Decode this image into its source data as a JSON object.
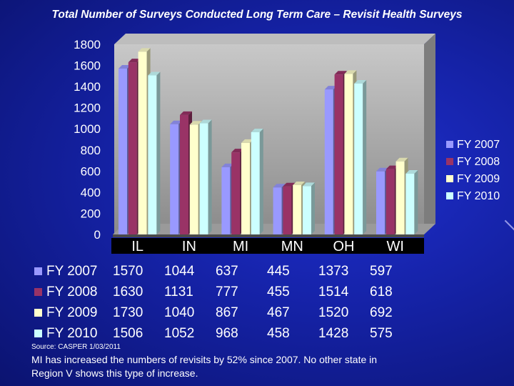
{
  "title": "Total Number of Surveys Conducted Long Term Care – Revisit Health Surveys",
  "chart_data": {
    "type": "bar",
    "title": "Total Number of Surveys Conducted Long Term Care – Revisit Health Surveys",
    "categories": [
      "IL",
      "IN",
      "MI",
      "MN",
      "OH",
      "WI"
    ],
    "series": [
      {
        "name": "FY 2007",
        "values": [
          1570,
          1044,
          637,
          445,
          1373,
          597
        ],
        "color": "#9999ff"
      },
      {
        "name": "FY 2008",
        "values": [
          1630,
          1131,
          777,
          455,
          1514,
          618
        ],
        "color": "#993366"
      },
      {
        "name": "FY 2009",
        "values": [
          1730,
          1040,
          867,
          467,
          1520,
          692
        ],
        "color": "#ffffcc"
      },
      {
        "name": "FY 2010",
        "values": [
          1506,
          1052,
          968,
          458,
          1428,
          575
        ],
        "color": "#ccffff"
      }
    ],
    "yticks": [
      "0",
      "200",
      "400",
      "600",
      "800",
      "1000",
      "1200",
      "1400",
      "1600",
      "1800"
    ],
    "ylim": [
      0,
      1800
    ],
    "xlabel": "",
    "ylabel": "",
    "legend": "right"
  },
  "source": "Source: CASPER 1/03/2011",
  "note": "MI has increased the numbers of revisits by 52% since 2007.   No other state in Region V shows this type of increase."
}
